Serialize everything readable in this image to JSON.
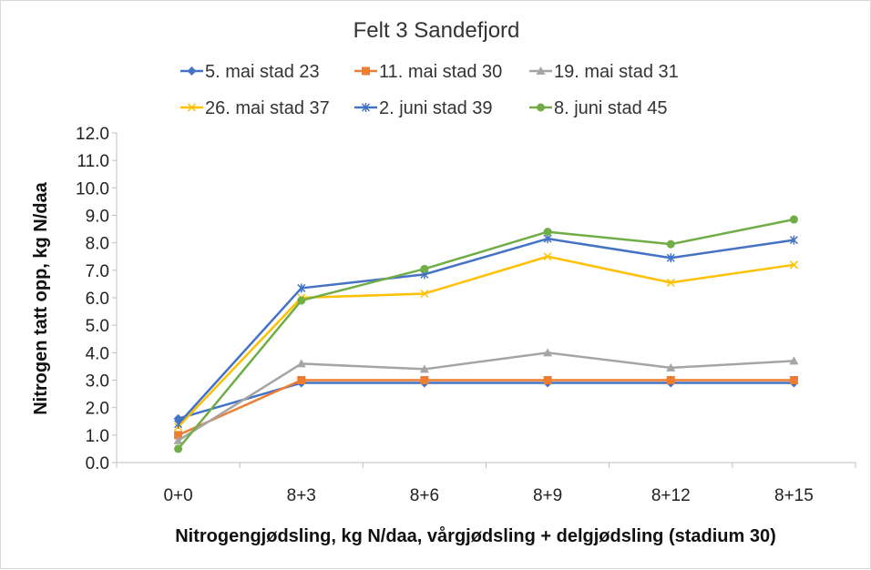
{
  "chart_data": {
    "type": "line",
    "title": "Felt 3 Sandefjord",
    "xlabel": "Nitrogengjødsling, kg N/daa, vårgjødsling + delgjødsling (stadium 30)",
    "ylabel": "Nitrogen tatt opp, kg N/daa",
    "categories": [
      "0+0",
      "8+3",
      "8+6",
      "8+9",
      "8+12",
      "8+15"
    ],
    "ylim": [
      0,
      12
    ],
    "yticks": [
      "0.0",
      "1.0",
      "2.0",
      "3.0",
      "4.0",
      "5.0",
      "6.0",
      "7.0",
      "8.0",
      "9.0",
      "10.0",
      "11.0",
      "12.0"
    ],
    "grid": false,
    "legend_position": "top",
    "series": [
      {
        "name": "5. mai stad 23",
        "color": "#4472C4",
        "marker": "diamond",
        "values": [
          1.6,
          2.9,
          2.9,
          2.9,
          2.9,
          2.9
        ]
      },
      {
        "name": "11. mai stad 30",
        "color": "#ED7D31",
        "marker": "square",
        "values": [
          1.0,
          3.0,
          3.0,
          3.0,
          3.0,
          3.0
        ]
      },
      {
        "name": "19. mai stad 31",
        "color": "#A5A5A5",
        "marker": "triangle",
        "values": [
          0.8,
          3.6,
          3.4,
          4.0,
          3.45,
          3.7
        ]
      },
      {
        "name": "26. mai stad 37",
        "color": "#FFC000",
        "marker": "x",
        "values": [
          1.3,
          6.0,
          6.15,
          7.5,
          6.55,
          7.2
        ]
      },
      {
        "name": "2. juni stad 39",
        "color": "#4472C4",
        "marker": "star",
        "values": [
          1.4,
          6.35,
          6.85,
          8.15,
          7.45,
          8.1
        ]
      },
      {
        "name": "8. juni stad 45",
        "color": "#70AD47",
        "marker": "circle",
        "values": [
          0.5,
          5.9,
          7.05,
          8.4,
          7.95,
          8.85
        ]
      }
    ]
  }
}
